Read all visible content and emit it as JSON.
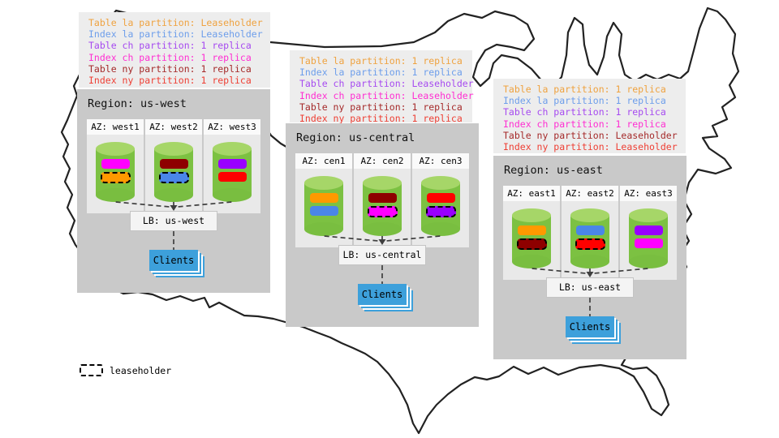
{
  "legend": {
    "label": "leaseholder"
  },
  "map": {
    "name": "united-states-outline",
    "stroke_color": "#222222"
  },
  "connector_color": "#3f3f3f",
  "regions": [
    {
      "id": "us-west",
      "title": "Region: us-west",
      "lb_label": "LB: us-west",
      "clients_label": "Clients",
      "partition_lines": [
        {
          "text": "Table la partition: Leaseholder",
          "color": "#efa23f"
        },
        {
          "text": "Index la partition: Leaseholder",
          "color": "#6d9eeb"
        },
        {
          "text": "Table ch partition: 1 replica",
          "color": "#a64af0"
        },
        {
          "text": "Index ch partition: 1 replica",
          "color": "#ff2ed2"
        },
        {
          "text": "Table ny partition: 1 replica",
          "color": "#a52a2a"
        },
        {
          "text": "Index ny partition: 1 replica",
          "color": "#ee4035"
        }
      ],
      "azs": [
        {
          "label": "AZ: west1",
          "bars": [
            {
              "partition": "Index ch",
              "color": "#ff00ff",
              "leaseholder": false
            },
            {
              "partition": "Table la",
              "color": "#ff9900",
              "leaseholder": true
            }
          ]
        },
        {
          "label": "AZ: west2",
          "bars": [
            {
              "partition": "Table ny",
              "color": "#8e0000",
              "leaseholder": false
            },
            {
              "partition": "Index la",
              "color": "#4a86e8",
              "leaseholder": true
            }
          ]
        },
        {
          "label": "AZ: west3",
          "bars": [
            {
              "partition": "Table ch",
              "color": "#9900ff",
              "leaseholder": false
            },
            {
              "partition": "Index ny",
              "color": "#ff0000",
              "leaseholder": false
            }
          ]
        }
      ]
    },
    {
      "id": "us-central",
      "title": "Region: us-central",
      "lb_label": "LB: us-central",
      "clients_label": "Clients",
      "partition_lines": [
        {
          "text": "Table la partition: 1 replica",
          "color": "#efa23f"
        },
        {
          "text": "Index la partition: 1 replica",
          "color": "#6d9eeb"
        },
        {
          "text": "Table ch partition: Leaseholder",
          "color": "#a64af0"
        },
        {
          "text": "Index ch partition: Leaseholder",
          "color": "#ff2ed2"
        },
        {
          "text": "Table ny partition: 1 replica",
          "color": "#a52a2a"
        },
        {
          "text": "Index ny partition: 1 replica",
          "color": "#ee4035"
        }
      ],
      "azs": [
        {
          "label": "AZ: cen1",
          "bars": [
            {
              "partition": "Table la",
              "color": "#ff9900",
              "leaseholder": false
            },
            {
              "partition": "Index la",
              "color": "#4a86e8",
              "leaseholder": false
            }
          ]
        },
        {
          "label": "AZ: cen2",
          "bars": [
            {
              "partition": "Table ny",
              "color": "#8e0000",
              "leaseholder": false
            },
            {
              "partition": "Index ch",
              "color": "#ff00ff",
              "leaseholder": true
            }
          ]
        },
        {
          "label": "AZ: cen3",
          "bars": [
            {
              "partition": "Index ny",
              "color": "#ff0000",
              "leaseholder": false
            },
            {
              "partition": "Table ch",
              "color": "#9900ff",
              "leaseholder": true
            }
          ]
        }
      ]
    },
    {
      "id": "us-east",
      "title": "Region: us-east",
      "lb_label": "LB: us-east",
      "clients_label": "Clients",
      "partition_lines": [
        {
          "text": "Table la partition: 1 replica",
          "color": "#efa23f"
        },
        {
          "text": "Index la partition: 1 replica",
          "color": "#6d9eeb"
        },
        {
          "text": "Table ch partition: 1 replica",
          "color": "#a64af0"
        },
        {
          "text": "Index ch partition: 1 replica",
          "color": "#ff2ed2"
        },
        {
          "text": "Table ny partition: Leaseholder",
          "color": "#a52a2a"
        },
        {
          "text": "Index ny partition: Leaseholder",
          "color": "#ee4035"
        }
      ],
      "azs": [
        {
          "label": "AZ: east1",
          "bars": [
            {
              "partition": "Table la",
              "color": "#ff9900",
              "leaseholder": false
            },
            {
              "partition": "Table ny",
              "color": "#8e0000",
              "leaseholder": true
            }
          ]
        },
        {
          "label": "AZ: east2",
          "bars": [
            {
              "partition": "Index la",
              "color": "#4a86e8",
              "leaseholder": false
            },
            {
              "partition": "Index ny",
              "color": "#ff0000",
              "leaseholder": true
            }
          ]
        },
        {
          "label": "AZ: east3",
          "bars": [
            {
              "partition": "Table ch",
              "color": "#9900ff",
              "leaseholder": false
            },
            {
              "partition": "Index ch",
              "color": "#ff00ff",
              "leaseholder": false
            }
          ]
        }
      ]
    }
  ]
}
